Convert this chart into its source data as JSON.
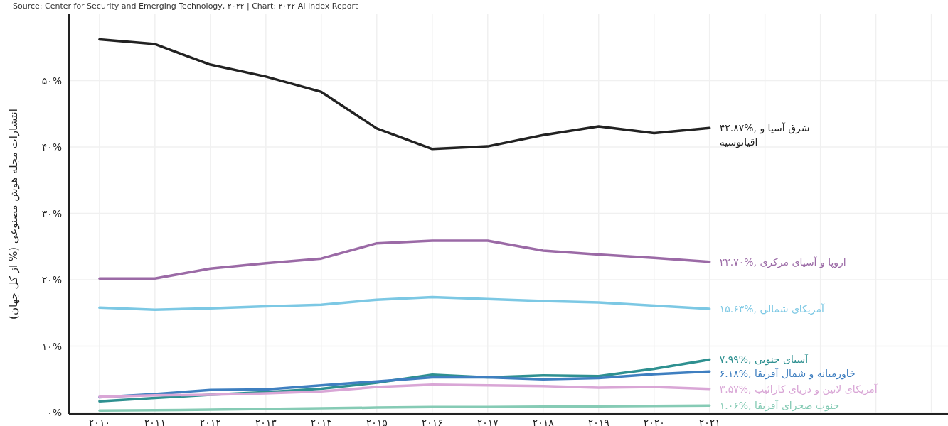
{
  "chart_data": {
    "type": "line",
    "ylabel": "انتشارات مجله هوش مصنوعی (% از کل جهان)",
    "annotations": [
      "Source: Center for Security and Emerging Technology, ۲۰۲۲ | Chart: ۲۰۲۲ AI Index Report"
    ],
    "x": [
      2010,
      2011,
      2012,
      2013,
      2014,
      2015,
      2016,
      2017,
      2018,
      2019,
      2020,
      2021
    ],
    "xlim": [
      2009.45,
      2025.3
    ],
    "xticks": [
      {
        "value": 2010,
        "label": "۲۰۱۰"
      },
      {
        "value": 2011,
        "label": "۲۰۱۱"
      },
      {
        "value": 2012,
        "label": "۲۰۱۲"
      },
      {
        "value": 2013,
        "label": "۲۰۱۳"
      },
      {
        "value": 2014,
        "label": "۲۰۱۴"
      },
      {
        "value": 2015,
        "label": "۲۰۱۵"
      },
      {
        "value": 2016,
        "label": "۲۰۱۶"
      },
      {
        "value": 2017,
        "label": "۲۰۱۷"
      },
      {
        "value": 2018,
        "label": "۲۰۱۸"
      },
      {
        "value": 2019,
        "label": "۲۰۱۹"
      },
      {
        "value": 2020,
        "label": "۲۰۲۰"
      },
      {
        "value": 2021,
        "label": "۲۰۲۱"
      },
      {
        "value": 2022,
        "label": null
      },
      {
        "value": 2023,
        "label": null
      },
      {
        "value": 2024,
        "label": null
      },
      {
        "value": 2025,
        "label": null
      }
    ],
    "ylim": [
      -0.2,
      60
    ],
    "yticks": [
      {
        "value": 0,
        "label": "۰%"
      },
      {
        "value": 10,
        "label": "۱۰%"
      },
      {
        "value": 20,
        "label": "۲۰%"
      },
      {
        "value": 30,
        "label": "۳۰%"
      },
      {
        "value": 40,
        "label": "۴۰%"
      },
      {
        "value": 50,
        "label": "۵۰%"
      }
    ],
    "grid": true,
    "series": [
      {
        "name": "۴۲.۸۷%, شرق آسیا و\nاقیانوسیه",
        "color": "#222222",
        "values": [
          56.2,
          55.5,
          52.4,
          50.6,
          48.3,
          42.8,
          39.7,
          40.1,
          41.8,
          43.1,
          42.1,
          42.87
        ]
      },
      {
        "name": "۲۲.۷۰%, اروپا و آسیای مرکزی",
        "color": "#9b6aa6",
        "values": [
          20.2,
          20.2,
          21.7,
          22.5,
          23.2,
          25.5,
          25.9,
          25.9,
          24.4,
          23.8,
          23.3,
          22.7
        ]
      },
      {
        "name": "۱۵.۶۳%, آمریکای شمالی",
        "color": "#7cc8e4",
        "values": [
          15.8,
          15.5,
          15.7,
          16.0,
          16.25,
          17.0,
          17.4,
          17.1,
          16.8,
          16.6,
          16.1,
          15.63
        ]
      },
      {
        "name": "۷.۹۹%, آسیای جنوبی",
        "color": "#2e9090",
        "values": [
          1.7,
          2.2,
          2.7,
          3.1,
          3.6,
          4.5,
          5.7,
          5.3,
          5.6,
          5.5,
          6.6,
          7.99
        ]
      },
      {
        "name": "۶.۱۸%, خاورمیانه و شمال آفریقا",
        "color": "#3f7fc0",
        "values": [
          2.3,
          2.8,
          3.4,
          3.5,
          4.1,
          4.7,
          5.3,
          5.3,
          5.0,
          5.2,
          5.8,
          6.18
        ]
      },
      {
        "name": "۳.۵۷%, آمریکای لاتین و دریای کارائیب",
        "color": "#d9a6d6",
        "values": [
          2.4,
          2.6,
          2.7,
          2.9,
          3.2,
          3.85,
          4.2,
          4.1,
          4.0,
          3.75,
          3.85,
          3.57
        ]
      },
      {
        "name": "۱.۰۶%, جنوب صحرای آفریقا",
        "color": "#86cbb5",
        "values": [
          0.3,
          0.35,
          0.45,
          0.55,
          0.65,
          0.75,
          0.85,
          0.85,
          0.9,
          0.95,
          1.0,
          1.06
        ]
      }
    ]
  }
}
